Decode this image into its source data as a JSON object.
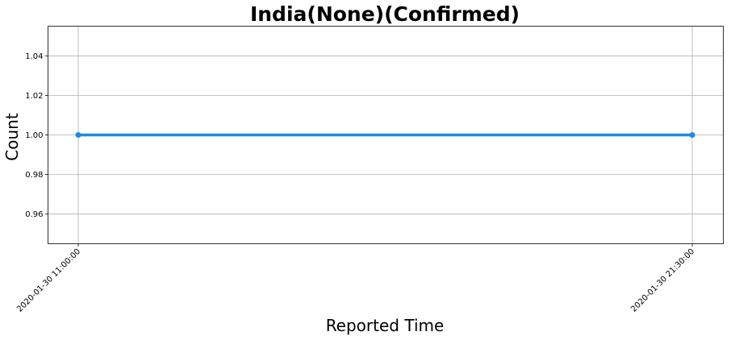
{
  "chart_data": {
    "type": "line",
    "title": "India(None)(Confirmed)",
    "xlabel": "Reported Time",
    "ylabel": "Count",
    "x": [
      "2020-01-30 11:00:00",
      "2020-01-30 21:30:00"
    ],
    "series": [
      {
        "values": [
          1.0,
          1.0
        ]
      }
    ],
    "ylim": [
      0.945,
      1.055
    ],
    "yticks": [
      0.96,
      0.98,
      1.0,
      1.02,
      1.04
    ],
    "ytick_labels": [
      "0.96",
      "0.98",
      "1.00",
      "1.02",
      "1.04"
    ],
    "grid": true,
    "line_color": "#1e88e5",
    "marker": "circle"
  }
}
